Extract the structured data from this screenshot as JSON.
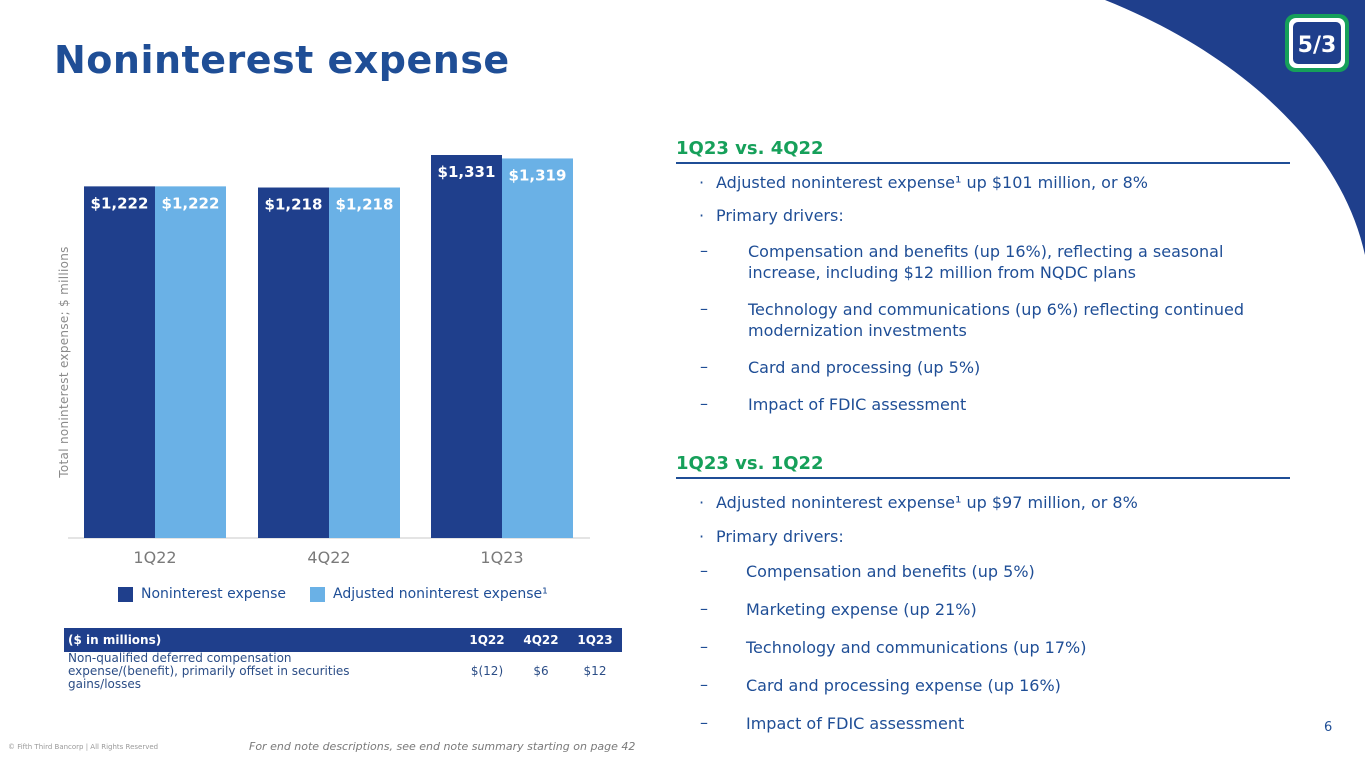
{
  "page": {
    "title": "Noninterest expense",
    "page_number": "6"
  },
  "colors": {
    "primary": "#1f3f8c",
    "secondary": "#6ab1e6",
    "accent_green": "#16a05a",
    "text_blue": "#1f4e96"
  },
  "chart_data": {
    "type": "bar",
    "categories": [
      "1Q22",
      "4Q22",
      "1Q23"
    ],
    "series": [
      {
        "name": "Noninterest expense",
        "values": [
          1222,
          1218,
          1331
        ],
        "labels": [
          "$1,222",
          "$1,218",
          "$1,331"
        ],
        "color": "#1f3f8c"
      },
      {
        "name": "Adjusted noninterest expense¹",
        "values": [
          1222,
          1218,
          1319
        ],
        "labels": [
          "$1,222",
          "$1,218",
          "$1,319"
        ],
        "color": "#6ab1e6"
      }
    ],
    "ylabel": "Total noninterest expense; $ millions",
    "ylim": [
      0,
      1331
    ],
    "grid": false,
    "legend": "bottom"
  },
  "legend": {
    "item1": "Noninterest expense",
    "item2": "Adjusted noninterest expense¹"
  },
  "note_table": {
    "headers": [
      "($ in millions)",
      "1Q22",
      "4Q22",
      "1Q23"
    ],
    "row": {
      "line1": "Non-qualified deferred compensation",
      "line2": "expense/(benefit), primarily offset in securities",
      "line3": "gains/losses",
      "v1": "$(12)",
      "v2": "$6",
      "v3": "$12"
    }
  },
  "section1": {
    "heading": "1Q23 vs. 4Q22",
    "bullet1": "Adjusted noninterest expense¹ up $101 million, or 8%",
    "bullet2": "Primary drivers:",
    "drivers": [
      [
        "Compensation and benefits (up 16%), reflecting a seasonal",
        "increase, including $12 million from NQDC plans"
      ],
      [
        "Technology and communications (up 6%) reflecting continued",
        "modernization investments"
      ],
      [
        "Card and processing (up 5%)"
      ],
      [
        "Impact of FDIC assessment"
      ]
    ]
  },
  "section2": {
    "heading": "1Q23 vs. 1Q22",
    "bullet1": "Adjusted noninterest expense¹ up $97 million, or 8%",
    "bullet2": "Primary drivers:",
    "drivers": [
      "Compensation and benefits (up 5%)",
      "Marketing expense (up 21%)",
      "Technology and communications (up 17%)",
      "Card and processing expense (up 16%)",
      "Impact of FDIC assessment"
    ]
  },
  "footer": {
    "copyright": "© Fifth Third Bancorp | All Rights Reserved",
    "endnote": "For end note descriptions, see end note summary starting on page 42"
  },
  "logo": {
    "text": "5/3"
  },
  "symbols": {
    "bullet": "·",
    "dash": "–"
  }
}
